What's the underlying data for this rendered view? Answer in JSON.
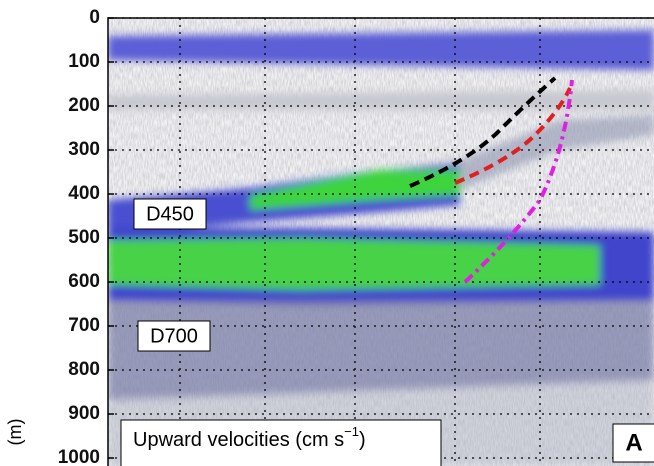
{
  "chart_data": {
    "type": "echogram",
    "ylabel": "(m)",
    "ylim": [
      0,
      1000
    ],
    "yticks": [
      0,
      100,
      200,
      300,
      400,
      500,
      600,
      700,
      800,
      900,
      1000
    ],
    "grid": true,
    "annotations": [
      "D450",
      "D700",
      "A"
    ],
    "legend_title": {
      "text": "Upward velocities (cm s",
      "sup": "−1",
      "close": ")"
    }
  }
}
